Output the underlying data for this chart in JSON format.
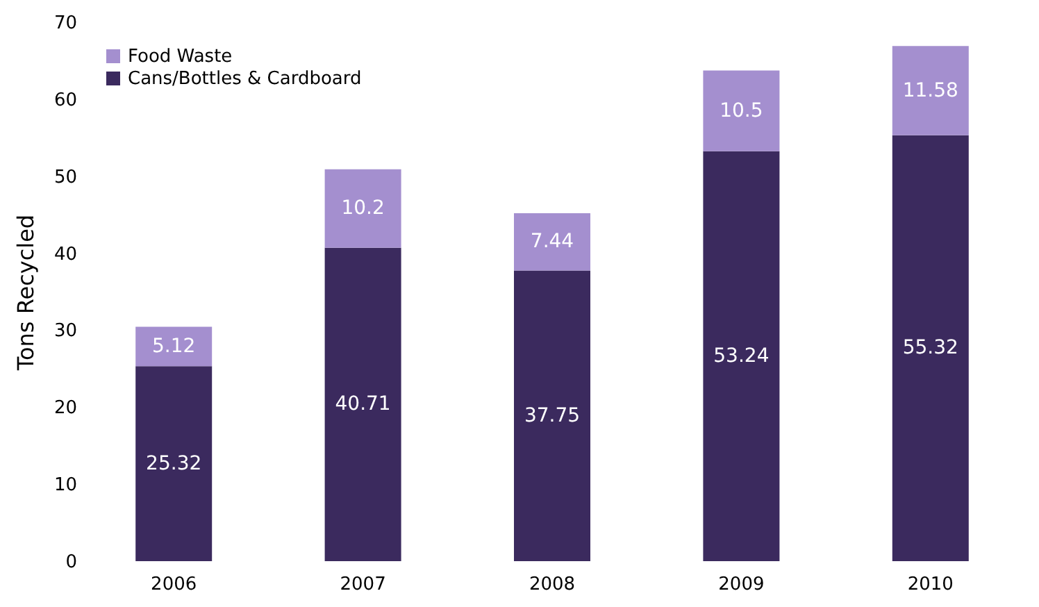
{
  "chart_data": {
    "type": "bar",
    "stacked": true,
    "ylabel": "Tons Recycled",
    "categories": [
      "2006",
      "2007",
      "2008",
      "2009",
      "2010"
    ],
    "series": [
      {
        "name": "Cans/Bottles & Cardboard",
        "color": "#3b2a5e",
        "values": [
          25.32,
          40.71,
          37.75,
          53.24,
          55.32
        ]
      },
      {
        "name": "Food Waste",
        "color": "#a48fcf",
        "values": [
          5.12,
          10.2,
          7.44,
          10.5,
          11.58
        ]
      }
    ],
    "ylim": [
      0,
      70
    ],
    "yticks": [
      0,
      10,
      20,
      30,
      40,
      50,
      60,
      70
    ],
    "grid": false,
    "legend": "top left",
    "data_labels": true
  }
}
